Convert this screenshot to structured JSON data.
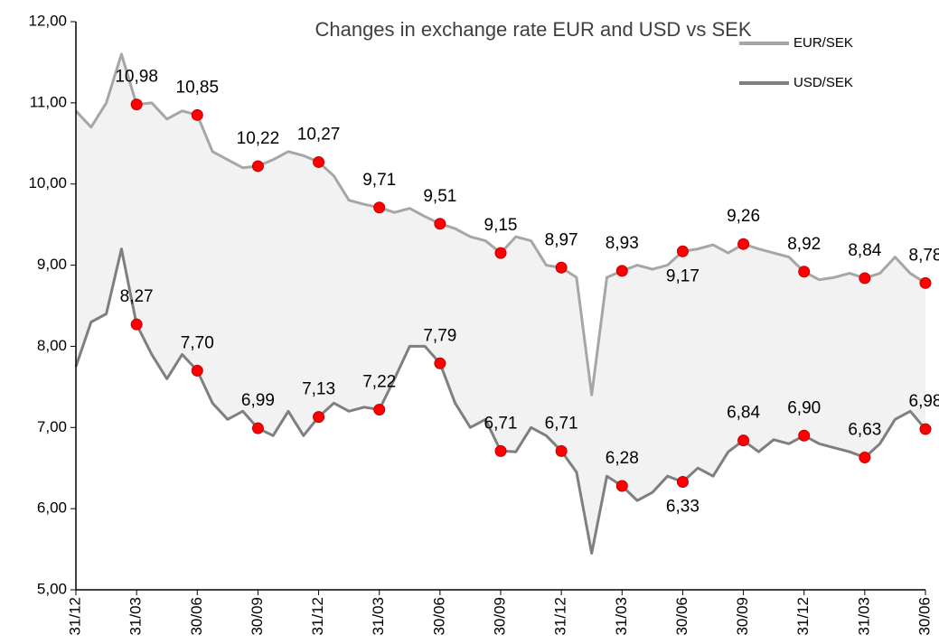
{
  "chart_data": {
    "type": "line",
    "title": "Changes in exchange rate EUR and USD vs SEK",
    "categories": [
      "31/12",
      null,
      null,
      null,
      "31/03",
      null,
      null,
      null,
      "30/06",
      null,
      null,
      null,
      "30/09",
      null,
      null,
      null,
      "31/12",
      null,
      null,
      null,
      "31/03",
      null,
      null,
      null,
      "30/06",
      null,
      null,
      null,
      "30/09",
      null,
      null,
      null,
      "31/12",
      null,
      null,
      null,
      "31/03",
      null,
      null,
      null,
      "30/06",
      null,
      null,
      null,
      "30/09",
      null,
      null,
      null,
      "31/12",
      null,
      null,
      null,
      "31/03",
      null,
      null,
      null,
      "30/06"
    ],
    "series": [
      {
        "name": "EUR/SEK",
        "color": "#a6a6a6",
        "values": [
          10.9,
          10.7,
          11.0,
          11.6,
          10.98,
          11.0,
          10.8,
          10.9,
          10.85,
          10.4,
          10.3,
          10.2,
          10.22,
          10.3,
          10.4,
          10.35,
          10.27,
          10.1,
          9.8,
          9.75,
          9.71,
          9.65,
          9.7,
          9.6,
          9.51,
          9.45,
          9.35,
          9.3,
          9.15,
          9.35,
          9.3,
          9.0,
          8.97,
          8.85,
          7.4,
          8.85,
          8.93,
          9.0,
          8.95,
          9.0,
          9.17,
          9.2,
          9.25,
          9.15,
          9.26,
          9.2,
          9.15,
          9.1,
          8.92,
          8.82,
          8.85,
          8.9,
          8.84,
          8.9,
          9.1,
          8.9,
          8.78
        ],
        "value_labels": [
          null,
          null,
          null,
          null,
          "10,98",
          null,
          null,
          null,
          "10,85",
          null,
          null,
          null,
          "10,22",
          null,
          null,
          null,
          "10,27",
          null,
          null,
          null,
          "9,71",
          null,
          null,
          null,
          "9,51",
          null,
          null,
          null,
          "9,15",
          null,
          null,
          null,
          "8,97",
          null,
          null,
          null,
          "8,93",
          null,
          null,
          null,
          "9,17",
          null,
          null,
          null,
          "9,26",
          null,
          null,
          null,
          "8,92",
          null,
          null,
          null,
          "8,84",
          null,
          null,
          null,
          "8,78"
        ]
      },
      {
        "name": "USD/SEK",
        "color": "#7f7f7f",
        "values": [
          7.75,
          8.3,
          8.4,
          9.2,
          8.27,
          7.9,
          7.6,
          7.9,
          7.7,
          7.3,
          7.1,
          7.2,
          6.99,
          6.9,
          7.2,
          6.9,
          7.13,
          7.3,
          7.2,
          7.25,
          7.22,
          7.6,
          8.0,
          8.0,
          7.79,
          7.3,
          7.0,
          7.1,
          6.71,
          6.7,
          7.0,
          6.9,
          6.71,
          6.45,
          5.45,
          6.4,
          6.28,
          6.1,
          6.2,
          6.4,
          6.33,
          6.5,
          6.4,
          6.7,
          6.84,
          6.7,
          6.85,
          6.8,
          6.9,
          6.8,
          6.75,
          6.7,
          6.63,
          6.8,
          7.1,
          7.2,
          6.98
        ],
        "value_labels": [
          null,
          null,
          null,
          null,
          "8,27",
          null,
          null,
          null,
          "7,70",
          null,
          null,
          null,
          "6,99",
          null,
          null,
          null,
          "7,13",
          null,
          null,
          null,
          "7,22",
          null,
          null,
          null,
          "7,79",
          null,
          null,
          null,
          "6,71",
          null,
          null,
          null,
          "6,71",
          null,
          null,
          null,
          "6,28",
          null,
          null,
          null,
          "6,33",
          null,
          null,
          null,
          "6,84",
          null,
          null,
          null,
          "6,90",
          null,
          null,
          null,
          "6,63",
          null,
          null,
          null,
          "6,98"
        ]
      }
    ],
    "marker_color": "#ff0000",
    "fill_between": "#f2f2f2",
    "ylim": [
      5,
      12
    ],
    "yticks": [
      {
        "value": 5,
        "label": "5,00"
      },
      {
        "value": 6,
        "label": "6,00"
      },
      {
        "value": 7,
        "label": "7,00"
      },
      {
        "value": 8,
        "label": "8,00"
      },
      {
        "value": 9,
        "label": "9,00"
      },
      {
        "value": 10,
        "label": "10,00"
      },
      {
        "value": 11,
        "label": "11,00"
      },
      {
        "value": 12,
        "label": "12,00"
      }
    ],
    "grid": false,
    "legend": "upper right"
  }
}
